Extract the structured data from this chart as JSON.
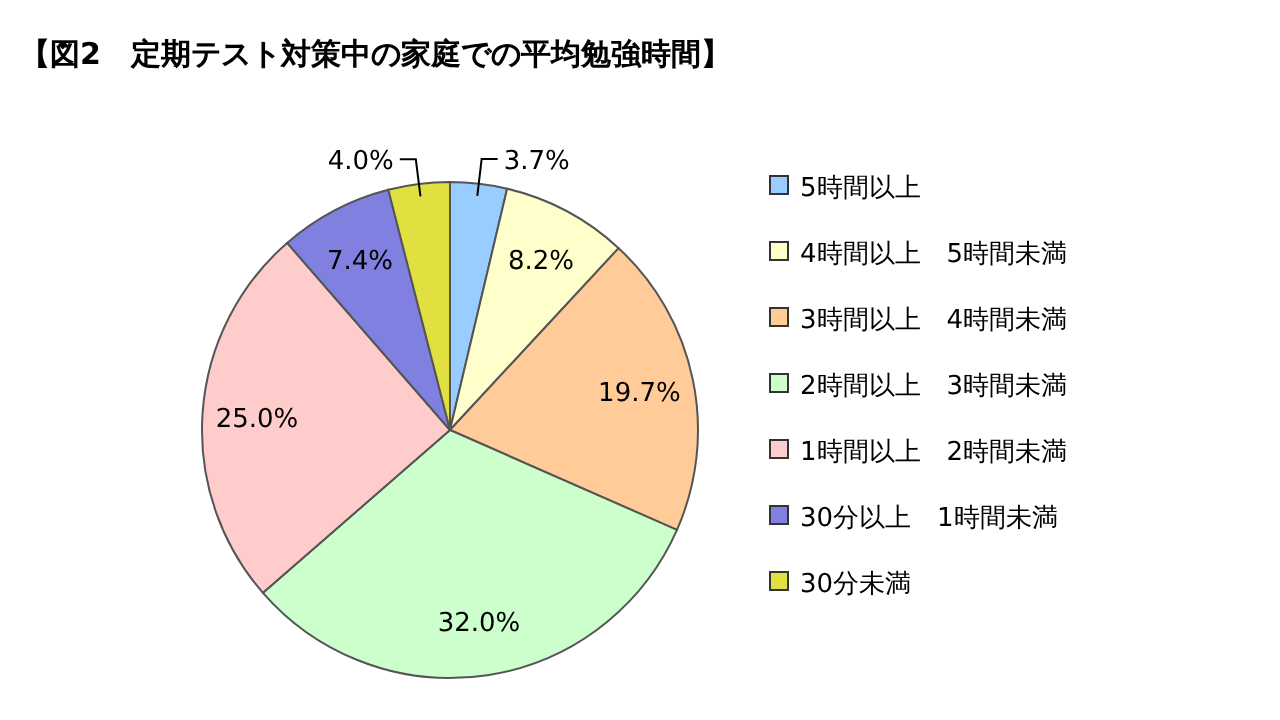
{
  "chart_data": {
    "type": "pie",
    "title": "【図2　定期テスト対策中の家庭での平均勉強時間】",
    "categories": [
      "5時間以上",
      "4時間以上　5時間未満",
      "3時間以上　4時間未満",
      "2時間以上　3時間未満",
      "1時間以上　2時間未満",
      "30分以上　1時間未満",
      "30分未満"
    ],
    "values": [
      3.7,
      8.2,
      19.7,
      32.0,
      25.0,
      7.4,
      4.0
    ],
    "value_labels": [
      "3.7%",
      "8.2%",
      "19.7%",
      "32.0%",
      "25.0%",
      "7.4%",
      "4.0%"
    ],
    "colors": [
      "#99ccff",
      "#ffffcc",
      "#ffcc99",
      "#ccffcc",
      "#ffcccc",
      "#8080e0",
      "#e0e040"
    ],
    "legend": "right"
  }
}
